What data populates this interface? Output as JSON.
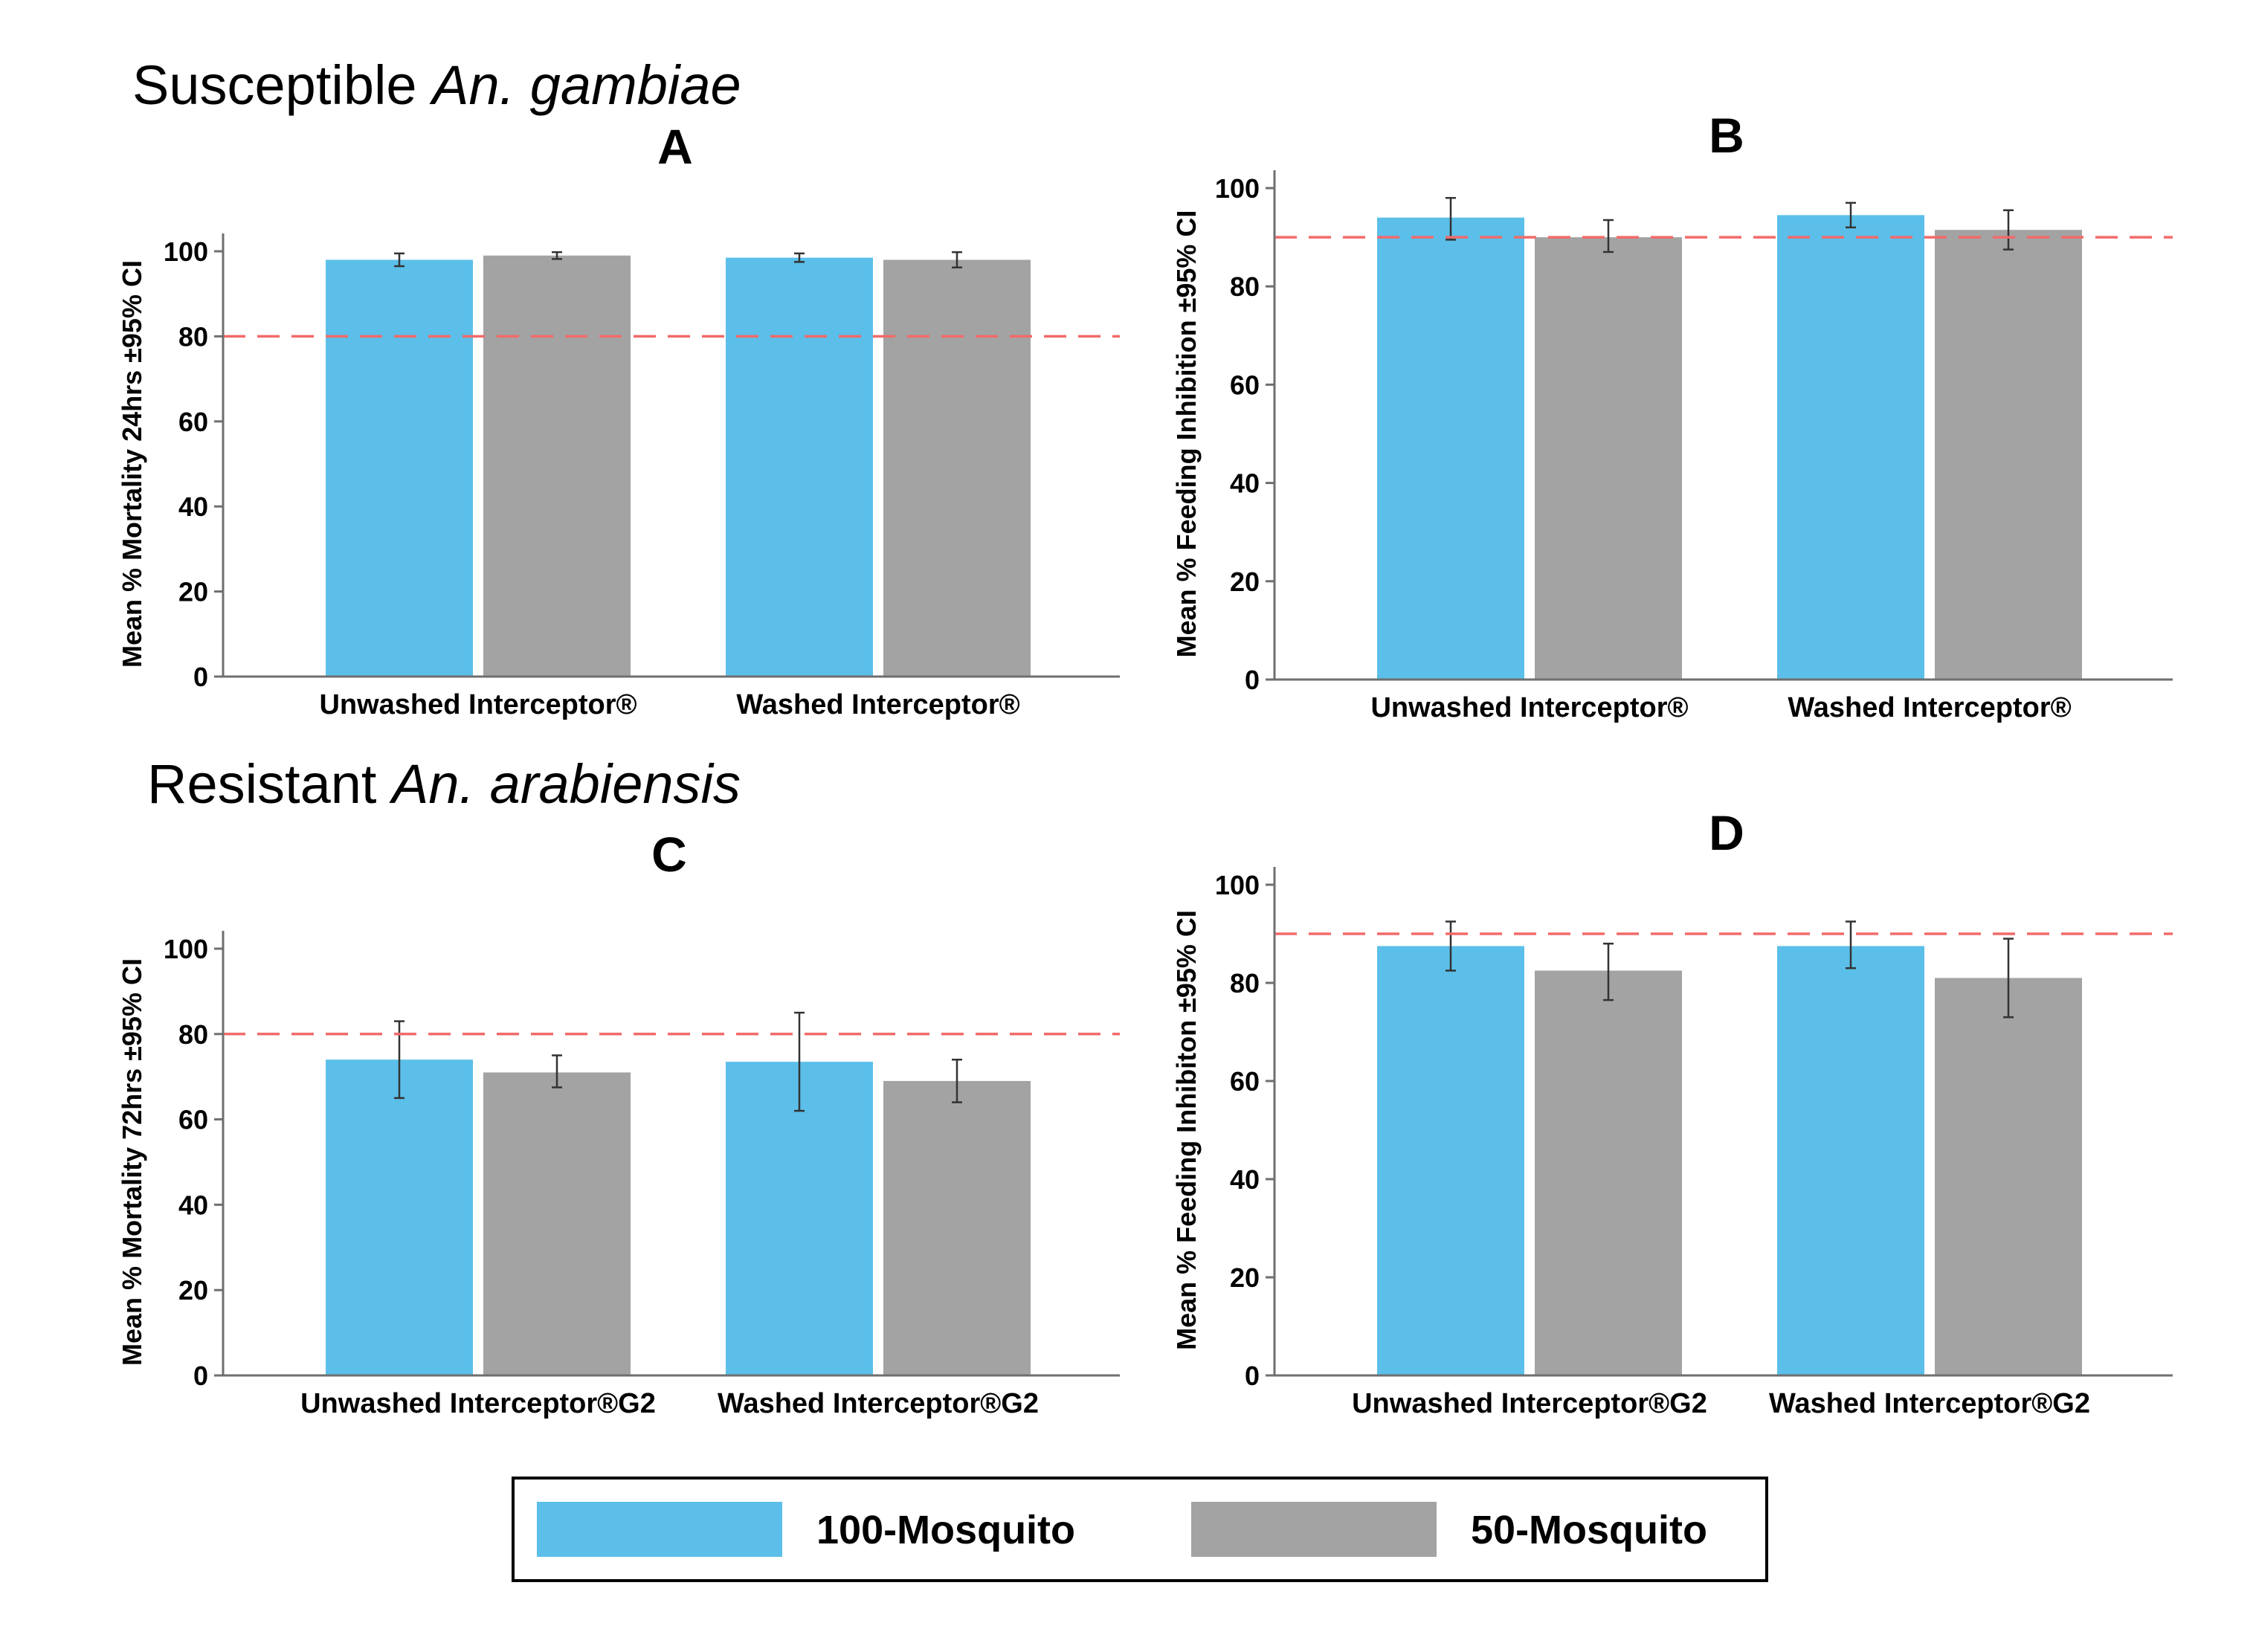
{
  "sections": [
    {
      "prefix": "Susceptible ",
      "species": "An. gambiae"
    },
    {
      "prefix": "Resistant ",
      "species": "An. arabiensis"
    }
  ],
  "colors": {
    "series_100": "#5bbfe9",
    "series_50": "#a3a3a3",
    "threshold": "#f26a6a",
    "axis": "#6f6f6f"
  },
  "legend": {
    "position": "bottom-center",
    "items": [
      "100-Mosquito",
      "50-Mosquito"
    ]
  },
  "chart_data": [
    {
      "type": "bar",
      "panel": "A",
      "title": "A",
      "ylabel": "Mean % Mortality 24hrs ±95% CI",
      "categories": [
        "Unwashed Interceptor®",
        "Washed Interceptor®"
      ],
      "ylim": [
        0,
        100
      ],
      "yticks": [
        0,
        20,
        40,
        60,
        80,
        100
      ],
      "threshold": 80,
      "series": [
        {
          "name": "100-Mosquito",
          "values": [
            98,
            98.5
          ],
          "ci_low": [
            96.5,
            97.5
          ],
          "ci_high": [
            99.5,
            99.5
          ]
        },
        {
          "name": "50-Mosquito",
          "values": [
            99,
            98
          ],
          "ci_low": [
            98.2,
            96.2
          ],
          "ci_high": [
            99.8,
            99.8
          ]
        }
      ]
    },
    {
      "type": "bar",
      "panel": "B",
      "title": "B",
      "ylabel": "Mean % Feeding Inhibition ±95% CI",
      "categories": [
        "Unwashed Interceptor®",
        "Washed Interceptor®"
      ],
      "ylim": [
        0,
        100
      ],
      "yticks": [
        0,
        20,
        40,
        60,
        80,
        100
      ],
      "threshold": 90,
      "series": [
        {
          "name": "100-Mosquito",
          "values": [
            94,
            94.5
          ],
          "ci_low": [
            89.5,
            92
          ],
          "ci_high": [
            98,
            97
          ]
        },
        {
          "name": "50-Mosquito",
          "values": [
            90,
            91.5
          ],
          "ci_low": [
            87,
            87.5
          ],
          "ci_high": [
            93.5,
            95.5
          ]
        }
      ]
    },
    {
      "type": "bar",
      "panel": "C",
      "title": "C",
      "ylabel": "Mean % Mortality 72hrs ±95% CI",
      "categories": [
        "Unwashed Interceptor®G2",
        "Washed Interceptor®G2"
      ],
      "ylim": [
        0,
        100
      ],
      "yticks": [
        0,
        20,
        40,
        60,
        80,
        100
      ],
      "threshold": 80,
      "series": [
        {
          "name": "100-Mosquito",
          "values": [
            74,
            73.5
          ],
          "ci_low": [
            65,
            62
          ],
          "ci_high": [
            83,
            85
          ]
        },
        {
          "name": "50-Mosquito",
          "values": [
            71,
            69
          ],
          "ci_low": [
            67.5,
            64
          ],
          "ci_high": [
            75,
            74
          ]
        }
      ]
    },
    {
      "type": "bar",
      "panel": "D",
      "title": "D",
      "ylabel": "Mean % Feeding Inhibiton ±95% CI",
      "categories": [
        "Unwashed Interceptor®G2",
        "Washed Interceptor®G2"
      ],
      "ylim": [
        0,
        100
      ],
      "yticks": [
        0,
        20,
        40,
        60,
        80,
        100
      ],
      "threshold": 90,
      "series": [
        {
          "name": "100-Mosquito",
          "values": [
            87.5,
            87.5
          ],
          "ci_low": [
            82.5,
            83
          ],
          "ci_high": [
            92.5,
            92.5
          ]
        },
        {
          "name": "50-Mosquito",
          "values": [
            82.5,
            81
          ],
          "ci_low": [
            76.5,
            73
          ],
          "ci_high": [
            88,
            89
          ]
        }
      ]
    }
  ]
}
